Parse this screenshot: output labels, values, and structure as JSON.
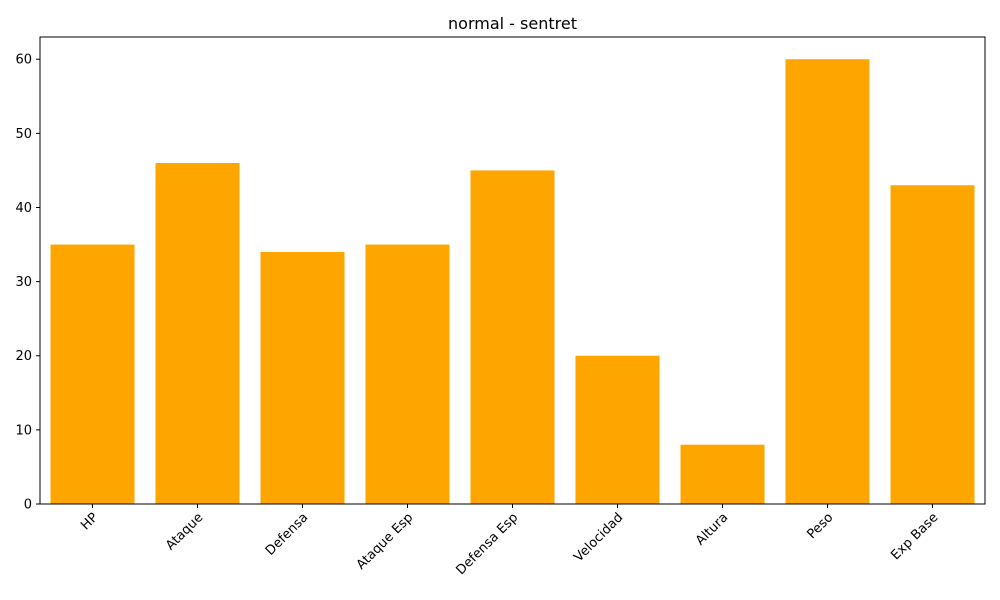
{
  "chart_data": {
    "type": "bar",
    "title": "normal - sentret",
    "xlabel": "",
    "ylabel": "",
    "categories": [
      "HP",
      "Ataque",
      "Defensa",
      "Ataque Esp",
      "Defensa Esp",
      "Velocidad",
      "Altura",
      "Peso",
      "Exp Base"
    ],
    "values": [
      35,
      46,
      34,
      35,
      45,
      20,
      8,
      60,
      43
    ],
    "ylim": [
      0,
      63
    ],
    "yticks": [
      "0",
      "10",
      "20",
      "30",
      "40",
      "50",
      "60"
    ],
    "bar_color": "#FFA500",
    "grid": false,
    "legend": "none"
  }
}
